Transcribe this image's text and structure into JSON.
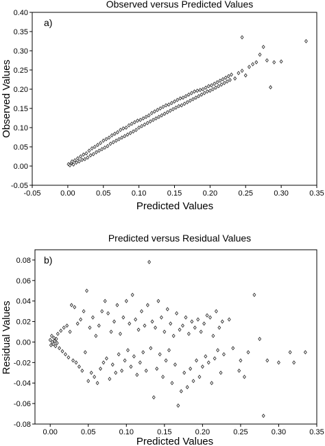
{
  "chart_data": [
    {
      "type": "scatter",
      "title": "Observed versus Predicted Values",
      "panel_label": "a)",
      "xlabel": "Predicted  Values",
      "ylabel": "Observed Values",
      "xlim": [
        -0.05,
        0.35
      ],
      "ylim": [
        -0.05,
        0.4
      ],
      "xticks": [
        "-0.05",
        "0.00",
        "0.05",
        "0.10",
        "0.15",
        "0.20",
        "0.25",
        "0.30",
        "0.35"
      ],
      "yticks": [
        "-0.05",
        "0.00",
        "0.05",
        "0.10",
        "0.15",
        "0.20",
        "0.25",
        "0.30",
        "0.35",
        "0.40"
      ],
      "marker": "diamond",
      "marker_color": "#333333",
      "points": [
        [
          0.001,
          0.005
        ],
        [
          0.003,
          0.002
        ],
        [
          0.005,
          0.008
        ],
        [
          0.006,
          0.012
        ],
        [
          0.008,
          0.004
        ],
        [
          0.01,
          0.015
        ],
        [
          0.012,
          0.009
        ],
        [
          0.014,
          0.02
        ],
        [
          0.016,
          0.012
        ],
        [
          0.018,
          0.025
        ],
        [
          0.02,
          0.016
        ],
        [
          0.022,
          0.03
        ],
        [
          0.024,
          0.018
        ],
        [
          0.026,
          0.033
        ],
        [
          0.028,
          0.022
        ],
        [
          0.03,
          0.04
        ],
        [
          0.032,
          0.028
        ],
        [
          0.034,
          0.046
        ],
        [
          0.036,
          0.031
        ],
        [
          0.038,
          0.05
        ],
        [
          0.04,
          0.036
        ],
        [
          0.042,
          0.055
        ],
        [
          0.044,
          0.04
        ],
        [
          0.046,
          0.06
        ],
        [
          0.048,
          0.044
        ],
        [
          0.05,
          0.066
        ],
        [
          0.052,
          0.048
        ],
        [
          0.054,
          0.07
        ],
        [
          0.056,
          0.052
        ],
        [
          0.058,
          0.074
        ],
        [
          0.06,
          0.058
        ],
        [
          0.062,
          0.08
        ],
        [
          0.064,
          0.062
        ],
        [
          0.066,
          0.084
        ],
        [
          0.068,
          0.066
        ],
        [
          0.07,
          0.088
        ],
        [
          0.072,
          0.07
        ],
        [
          0.074,
          0.094
        ],
        [
          0.076,
          0.074
        ],
        [
          0.078,
          0.098
        ],
        [
          0.08,
          0.078
        ],
        [
          0.082,
          0.1
        ],
        [
          0.084,
          0.082
        ],
        [
          0.086,
          0.106
        ],
        [
          0.088,
          0.086
        ],
        [
          0.09,
          0.11
        ],
        [
          0.092,
          0.09
        ],
        [
          0.094,
          0.114
        ],
        [
          0.096,
          0.094
        ],
        [
          0.098,
          0.118
        ],
        [
          0.1,
          0.1
        ],
        [
          0.102,
          0.12
        ],
        [
          0.104,
          0.104
        ],
        [
          0.106,
          0.124
        ],
        [
          0.108,
          0.108
        ],
        [
          0.11,
          0.128
        ],
        [
          0.112,
          0.112
        ],
        [
          0.114,
          0.132
        ],
        [
          0.116,
          0.116
        ],
        [
          0.118,
          0.138
        ],
        [
          0.12,
          0.12
        ],
        [
          0.122,
          0.142
        ],
        [
          0.124,
          0.124
        ],
        [
          0.126,
          0.146
        ],
        [
          0.128,
          0.128
        ],
        [
          0.13,
          0.15
        ],
        [
          0.132,
          0.132
        ],
        [
          0.134,
          0.154
        ],
        [
          0.136,
          0.136
        ],
        [
          0.138,
          0.158
        ],
        [
          0.14,
          0.14
        ],
        [
          0.142,
          0.16
        ],
        [
          0.144,
          0.144
        ],
        [
          0.146,
          0.164
        ],
        [
          0.148,
          0.148
        ],
        [
          0.15,
          0.168
        ],
        [
          0.152,
          0.152
        ],
        [
          0.154,
          0.172
        ],
        [
          0.156,
          0.156
        ],
        [
          0.158,
          0.176
        ],
        [
          0.16,
          0.158
        ],
        [
          0.162,
          0.178
        ],
        [
          0.164,
          0.162
        ],
        [
          0.166,
          0.182
        ],
        [
          0.168,
          0.166
        ],
        [
          0.17,
          0.186
        ],
        [
          0.172,
          0.17
        ],
        [
          0.174,
          0.19
        ],
        [
          0.176,
          0.174
        ],
        [
          0.178,
          0.194
        ],
        [
          0.18,
          0.178
        ],
        [
          0.182,
          0.196
        ],
        [
          0.184,
          0.182
        ],
        [
          0.186,
          0.198
        ],
        [
          0.188,
          0.186
        ],
        [
          0.19,
          0.2
        ],
        [
          0.192,
          0.19
        ],
        [
          0.194,
          0.204
        ],
        [
          0.196,
          0.194
        ],
        [
          0.198,
          0.208
        ],
        [
          0.2,
          0.196
        ],
        [
          0.202,
          0.21
        ],
        [
          0.204,
          0.2
        ],
        [
          0.206,
          0.214
        ],
        [
          0.208,
          0.204
        ],
        [
          0.21,
          0.218
        ],
        [
          0.212,
          0.208
        ],
        [
          0.214,
          0.222
        ],
        [
          0.216,
          0.212
        ],
        [
          0.218,
          0.226
        ],
        [
          0.22,
          0.216
        ],
        [
          0.222,
          0.23
        ],
        [
          0.224,
          0.22
        ],
        [
          0.226,
          0.234
        ],
        [
          0.228,
          0.224
        ],
        [
          0.23,
          0.238
        ],
        [
          0.235,
          0.228
        ],
        [
          0.24,
          0.242
        ],
        [
          0.245,
          0.248
        ],
        [
          0.25,
          0.236
        ],
        [
          0.255,
          0.258
        ],
        [
          0.26,
          0.265
        ],
        [
          0.265,
          0.27
        ],
        [
          0.27,
          0.29
        ],
        [
          0.275,
          0.31
        ],
        [
          0.28,
          0.275
        ],
        [
          0.285,
          0.205
        ],
        [
          0.29,
          0.27
        ],
        [
          0.3,
          0.272
        ],
        [
          0.335,
          0.325
        ],
        [
          0.245,
          0.335
        ]
      ]
    },
    {
      "type": "scatter",
      "title": "Predicted versus Residual Values",
      "panel_label": "b)",
      "xlabel": "Predicted Values",
      "ylabel": "Residual Values",
      "xlim": [
        -0.02,
        0.35
      ],
      "ylim": [
        -0.08,
        0.09
      ],
      "xticks": [
        "0.00",
        "0.05",
        "0.10",
        "0.15",
        "0.20",
        "0.25",
        "0.30",
        "0.35"
      ],
      "yticks": [
        "-0.08",
        "-0.06",
        "-0.04",
        "-0.02",
        "0.00",
        "0.02",
        "0.04",
        "0.06",
        "0.08"
      ],
      "marker": "diamond",
      "marker_color": "#333333",
      "points": [
        [
          0.0,
          0.002
        ],
        [
          0.001,
          -0.003
        ],
        [
          0.002,
          0.006
        ],
        [
          0.003,
          0.0
        ],
        [
          0.004,
          -0.002
        ],
        [
          0.005,
          0.004
        ],
        [
          0.006,
          0.001
        ],
        [
          0.007,
          -0.004
        ],
        [
          0.008,
          0.003
        ],
        [
          0.009,
          -0.001
        ],
        [
          0.01,
          0.008
        ],
        [
          0.012,
          -0.006
        ],
        [
          0.014,
          0.011
        ],
        [
          0.016,
          -0.009
        ],
        [
          0.018,
          0.014
        ],
        [
          0.02,
          -0.012
        ],
        [
          0.022,
          0.016
        ],
        [
          0.024,
          -0.015
        ],
        [
          0.026,
          0.01
        ],
        [
          0.028,
          0.036
        ],
        [
          0.03,
          -0.018
        ],
        [
          0.032,
          0.034
        ],
        [
          0.034,
          -0.02
        ],
        [
          0.036,
          0.018
        ],
        [
          0.038,
          -0.024
        ],
        [
          0.04,
          0.022
        ],
        [
          0.042,
          -0.028
        ],
        [
          0.044,
          0.03
        ],
        [
          0.046,
          -0.01
        ],
        [
          0.048,
          0.05
        ],
        [
          0.05,
          -0.038
        ],
        [
          0.052,
          0.014
        ],
        [
          0.054,
          -0.03
        ],
        [
          0.056,
          0.024
        ],
        [
          0.058,
          -0.034
        ],
        [
          0.06,
          0.006
        ],
        [
          0.062,
          -0.04
        ],
        [
          0.064,
          0.016
        ],
        [
          0.066,
          -0.026
        ],
        [
          0.068,
          0.03
        ],
        [
          0.07,
          -0.02
        ],
        [
          0.072,
          0.04
        ],
        [
          0.074,
          -0.016
        ],
        [
          0.076,
          0.028
        ],
        [
          0.078,
          -0.036
        ],
        [
          0.08,
          0.01
        ],
        [
          0.082,
          -0.022
        ],
        [
          0.084,
          0.02
        ],
        [
          0.086,
          -0.03
        ],
        [
          0.088,
          0.036
        ],
        [
          0.09,
          -0.012
        ],
        [
          0.092,
          0.008
        ],
        [
          0.094,
          -0.028
        ],
        [
          0.096,
          0.024
        ],
        [
          0.098,
          -0.018
        ],
        [
          0.1,
          0.04
        ],
        [
          0.102,
          -0.008
        ],
        [
          0.104,
          0.018
        ],
        [
          0.106,
          -0.024
        ],
        [
          0.108,
          0.046
        ],
        [
          0.11,
          -0.014
        ],
        [
          0.112,
          0.022
        ],
        [
          0.114,
          -0.032
        ],
        [
          0.116,
          0.012
        ],
        [
          0.118,
          -0.02
        ],
        [
          0.12,
          0.03
        ],
        [
          0.122,
          -0.01
        ],
        [
          0.124,
          0.016
        ],
        [
          0.126,
          -0.028
        ],
        [
          0.128,
          0.036
        ],
        [
          0.13,
          0.078
        ],
        [
          0.132,
          -0.006
        ],
        [
          0.134,
          0.02
        ],
        [
          0.136,
          -0.054
        ],
        [
          0.138,
          0.014
        ],
        [
          0.14,
          -0.026
        ],
        [
          0.142,
          0.04
        ],
        [
          0.144,
          -0.012
        ],
        [
          0.146,
          0.024
        ],
        [
          0.148,
          -0.034
        ],
        [
          0.15,
          0.01
        ],
        [
          0.152,
          -0.018
        ],
        [
          0.154,
          0.032
        ],
        [
          0.156,
          -0.008
        ],
        [
          0.158,
          0.018
        ],
        [
          0.16,
          -0.04
        ],
        [
          0.162,
          0.006
        ],
        [
          0.164,
          -0.022
        ],
        [
          0.166,
          0.028
        ],
        [
          0.168,
          -0.062
        ],
        [
          0.17,
          0.012
        ],
        [
          0.172,
          -0.048
        ],
        [
          0.174,
          0.016
        ],
        [
          0.176,
          -0.03
        ],
        [
          0.178,
          0.024
        ],
        [
          0.18,
          -0.044
        ],
        [
          0.182,
          0.008
        ],
        [
          0.184,
          -0.026
        ],
        [
          0.186,
          0.02
        ],
        [
          0.188,
          -0.038
        ],
        [
          0.19,
          0.014
        ],
        [
          0.192,
          -0.018
        ],
        [
          0.194,
          0.022
        ],
        [
          0.196,
          -0.034
        ],
        [
          0.198,
          0.01
        ],
        [
          0.2,
          -0.024
        ],
        [
          0.202,
          0.018
        ],
        [
          0.204,
          -0.014
        ],
        [
          0.206,
          0.026
        ],
        [
          0.208,
          -0.02
        ],
        [
          0.21,
          0.024
        ],
        [
          0.212,
          -0.04
        ],
        [
          0.214,
          0.006
        ],
        [
          0.216,
          -0.016
        ],
        [
          0.218,
          0.03
        ],
        [
          0.22,
          -0.008
        ],
        [
          0.222,
          0.014
        ],
        [
          0.224,
          -0.03
        ],
        [
          0.226,
          0.02
        ],
        [
          0.228,
          -0.012
        ],
        [
          0.235,
          0.022
        ],
        [
          0.24,
          -0.006
        ],
        [
          0.25,
          -0.018
        ],
        [
          0.255,
          -0.034
        ],
        [
          0.26,
          -0.01
        ],
        [
          0.268,
          0.046
        ],
        [
          0.275,
          0.003
        ],
        [
          0.28,
          -0.072
        ],
        [
          0.285,
          -0.018
        ],
        [
          0.3,
          -0.02
        ],
        [
          0.315,
          -0.01
        ],
        [
          0.32,
          -0.02
        ],
        [
          0.335,
          -0.01
        ],
        [
          0.248,
          -0.028
        ]
      ]
    }
  ]
}
